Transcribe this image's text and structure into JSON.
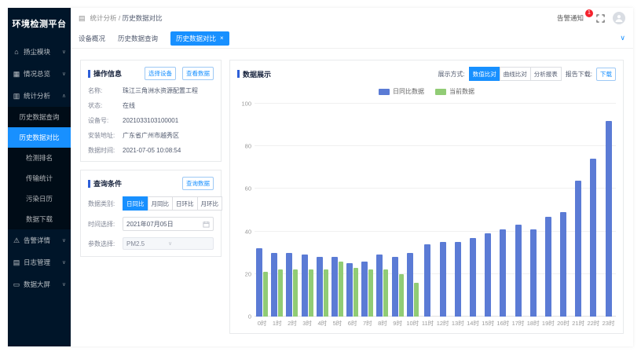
{
  "app": {
    "title": "环境检测平台"
  },
  "sidebar": {
    "items": [
      {
        "label": "扬尘模块",
        "icon": "home-icon"
      },
      {
        "label": "情况总览",
        "icon": "overview-icon"
      },
      {
        "label": "统计分析",
        "icon": "analysis-icon",
        "children": [
          {
            "label": "历史数据查询"
          },
          {
            "label": "历史数据对比"
          },
          {
            "label": "检测排名"
          },
          {
            "label": "传输统计"
          },
          {
            "label": "污染日历"
          },
          {
            "label": "数据下载"
          }
        ],
        "active_child": "历史数据对比"
      },
      {
        "label": "告警详情",
        "icon": "alert-icon"
      },
      {
        "label": "日志管理",
        "icon": "log-icon"
      },
      {
        "label": "数据大屏",
        "icon": "big-screen-icon"
      }
    ]
  },
  "header": {
    "breadcrumb": {
      "section": "统计分析",
      "separator": "/",
      "current": "历史数据对比"
    },
    "notification": {
      "label": "告警通知",
      "badge": "1"
    }
  },
  "tabs": [
    {
      "label": "设备概况"
    },
    {
      "label": "历史数据查询"
    },
    {
      "label": "历史数据对比",
      "close": "×"
    }
  ],
  "operation_info": {
    "title": "操作信息",
    "select_device_button": "选择设备",
    "view_data_button": "查看数据",
    "fields": [
      {
        "label": "名称:",
        "value": "珠江三角洲水资源配置工程"
      },
      {
        "label": "状态:",
        "value": "在线"
      },
      {
        "label": "设备号:",
        "value": "2021033103100001"
      },
      {
        "label": "安装地址:",
        "value": "广东省广州市越秀区"
      },
      {
        "label": "数据时间:",
        "value": "2021-07-05 10:08:54"
      }
    ]
  },
  "query": {
    "title": "查询条件",
    "query_button": "查询数据",
    "category_label": "数据类别:",
    "categories": [
      "日同比",
      "月同比",
      "日环比",
      "月环比"
    ],
    "active_category": "日同比",
    "time_label": "时间选择:",
    "time_value": "2021年07月05日",
    "param_label": "参数选择:",
    "param_value": "PM2.5"
  },
  "data_panel": {
    "title": "数据展示",
    "display_mode_label": "展示方式:",
    "modes": [
      "数值比对",
      "曲线比对",
      "分析报表"
    ],
    "active_mode": "数值比对",
    "download_label": "报告下载:",
    "download_button": "下载"
  },
  "chart_data": {
    "type": "bar",
    "categories": [
      "0时",
      "1时",
      "2时",
      "3时",
      "4时",
      "5时",
      "6时",
      "7时",
      "8时",
      "9时",
      "10时",
      "11时",
      "12时",
      "13时",
      "14时",
      "15时",
      "16时",
      "17时",
      "18时",
      "19时",
      "20时",
      "21时",
      "22时",
      "23时"
    ],
    "series": [
      {
        "name": "日同比数据",
        "color": "#5B7BD5",
        "values": [
          32,
          30,
          30,
          29,
          28,
          28,
          25,
          26,
          29,
          28,
          30,
          34,
          35,
          35,
          37,
          39,
          41,
          43,
          41,
          47,
          49,
          64,
          74,
          92
        ]
      },
      {
        "name": "当前数据",
        "color": "#91CC75",
        "values": [
          21,
          22,
          22,
          22,
          22,
          26,
          23,
          22,
          22,
          20,
          16
        ]
      }
    ],
    "ylim": [
      0,
      100
    ],
    "yticks": [
      0,
      20,
      40,
      60,
      80,
      100
    ],
    "legend_position": "top",
    "grid": true
  },
  "colors": {
    "accent": "#1890ff",
    "sidebar_bg": "#001529",
    "submenu_bg": "#000c17",
    "badge": "#f5222d",
    "bar_blue": "#5B7BD5",
    "bar_green": "#91CC75"
  }
}
